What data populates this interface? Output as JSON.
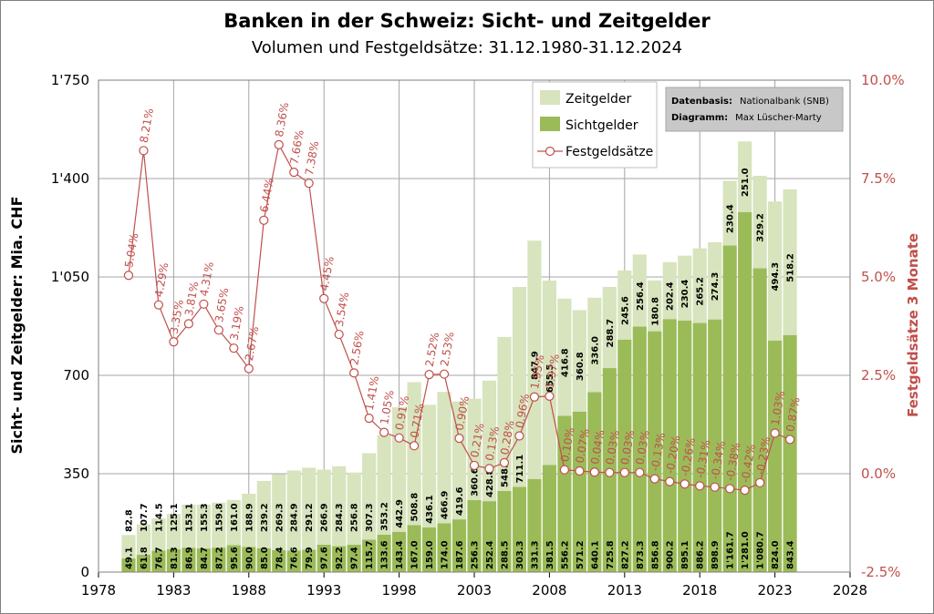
{
  "chart_data": {
    "type": "bar",
    "title": "Banken in der Schweiz: Sicht- und Zeitgelder",
    "subtitle": "Volumen und Festgeldsätze: 31.12.1980-31.12.2024",
    "ylabel": "Sicht- und Zeitgelder: Mia. CHF",
    "y2label": "Festgeldsätze 3 Monate",
    "ylim": [
      0,
      1750
    ],
    "y2lim": [
      -2.5,
      10.0
    ],
    "xlim": [
      1978,
      2028
    ],
    "yticks": [
      "0",
      "350",
      "700",
      "1'050",
      "1'400",
      "1'750"
    ],
    "yticks_values": [
      0,
      350,
      700,
      1050,
      1400,
      1750
    ],
    "y2ticks": [
      "-2.5%",
      "0.0%",
      "2.5%",
      "5.0%",
      "7.5%",
      "10.0%"
    ],
    "y2ticks_values": [
      -2.5,
      0,
      2.5,
      5,
      7.5,
      10
    ],
    "xticks": [
      "1978",
      "1983",
      "1988",
      "1993",
      "1998",
      "2003",
      "2008",
      "2013",
      "2018",
      "2023",
      "2028"
    ],
    "xticks_values": [
      1978,
      1983,
      1988,
      1993,
      1998,
      2003,
      2008,
      2013,
      2018,
      2023,
      2028
    ],
    "grid": true,
    "legend_position": "top-right",
    "colors": {
      "sichtgelder": "#9bbb59",
      "zeitgelder": "#d7e4bd",
      "festgeld": "#c0504d",
      "grid": "#a6a6a6"
    },
    "legend": [
      "Zeitgelder",
      "Sichtgelder",
      "Festgeldsätze"
    ],
    "source": {
      "label1": "Datenbasis:",
      "value1": "Nationalbank (SNB)",
      "label2": "Diagramm:",
      "value2": "Max Lüscher-Marty"
    },
    "years": [
      1980,
      1981,
      1982,
      1983,
      1984,
      1985,
      1986,
      1987,
      1988,
      1989,
      1990,
      1991,
      1992,
      1993,
      1994,
      1995,
      1996,
      1997,
      1998,
      1999,
      2000,
      2001,
      2002,
      2003,
      2004,
      2005,
      2006,
      2007,
      2008,
      2009,
      2010,
      2011,
      2012,
      2013,
      2014,
      2015,
      2016,
      2017,
      2018,
      2019,
      2020,
      2021,
      2022,
      2023,
      2024
    ],
    "sichtgelder": [
      49.1,
      61.8,
      76.7,
      81.3,
      86.9,
      84.7,
      87.2,
      95.6,
      90.0,
      85.0,
      78.4,
      76.6,
      79.9,
      97.6,
      92.2,
      97.4,
      115.7,
      133.6,
      143.4,
      167.0,
      159.0,
      174.0,
      187.6,
      256.3,
      252.4,
      288.5,
      303.3,
      331.3,
      381.5,
      556.2,
      571.2,
      640.1,
      725.8,
      827.2,
      873.3,
      856.8,
      900.2,
      895.1,
      886.2,
      898.9,
      1161.7,
      1281.0,
      1080.7,
      824.0,
      843.4
    ],
    "sichtgelder_labels": [
      "49.1",
      "61.8",
      "76.7",
      "81.3",
      "86.9",
      "84.7",
      "87.2",
      "95.6",
      "90.0",
      "85.0",
      "78.4",
      "76.6",
      "79.9",
      "97.6",
      "92.2",
      "97.4",
      "115.7",
      "133.6",
      "143.4",
      "167.0",
      "159.0",
      "174.0",
      "187.6",
      "256.3",
      "252.4",
      "288.5",
      "303.3",
      "331.3",
      "381.5",
      "556.2",
      "571.2",
      "640.1",
      "725.8",
      "827.2",
      "873.3",
      "856.8",
      "900.2",
      "895.1",
      "886.2",
      "898.9",
      "1'161.7",
      "1'281.0",
      "1'080.7",
      "824.0",
      "843.4"
    ],
    "zeitgelder": [
      82.8,
      107.7,
      114.5,
      125.1,
      153.1,
      155.3,
      159.8,
      161.0,
      188.9,
      239.2,
      269.3,
      284.9,
      291.2,
      266.9,
      284.3,
      256.8,
      307.3,
      353.2,
      442.9,
      508.8,
      436.1,
      466.9,
      419.6,
      360.6,
      428.8,
      548.0,
      711.1,
      847.9,
      655.5,
      416.8,
      360.8,
      336.0,
      288.7,
      245.6,
      256.4,
      180.8,
      202.4,
      230.4,
      265.2,
      274.3,
      230.4,
      251.0,
      329.2,
      494.3,
      518.2
    ],
    "zeitgelder_labels": [
      "82.8",
      "107.7",
      "114.5",
      "125.1",
      "153.1",
      "155.3",
      "159.8",
      "161.0",
      "188.9",
      "239.2",
      "269.3",
      "284.9",
      "291.2",
      "266.9",
      "284.3",
      "256.8",
      "307.3",
      "353.2",
      "442.9",
      "508.8",
      "436.1",
      "466.9",
      "419.6",
      "360.6",
      "428.8",
      "548.0",
      "711.1",
      "847.9",
      "655.5",
      "416.8",
      "360.8",
      "336.0",
      "288.7",
      "245.6",
      "256.4",
      "180.8",
      "202.4",
      "230.4",
      "265.2",
      "274.3",
      "230.4",
      "251.0",
      "329.2",
      "494.3",
      "518.2"
    ],
    "festgeldsaetze": [
      5.04,
      8.21,
      4.29,
      3.35,
      3.81,
      4.31,
      3.65,
      3.19,
      2.67,
      6.44,
      8.36,
      7.66,
      7.38,
      4.45,
      3.54,
      2.56,
      1.41,
      1.05,
      0.91,
      0.71,
      2.52,
      2.53,
      0.9,
      0.21,
      0.13,
      0.28,
      0.96,
      1.95,
      1.97,
      0.1,
      0.07,
      0.04,
      0.03,
      0.03,
      0.03,
      -0.13,
      -0.2,
      -0.26,
      -0.31,
      -0.34,
      -0.38,
      -0.42,
      -0.23,
      1.03,
      0.87
    ],
    "festgeldsaetze_labels": [
      "5.04%",
      "8.21%",
      "4.29%",
      "3.35%",
      "3.81%",
      "4.31%",
      "3.65%",
      "3.19%",
      "2.67%",
      "6.44%",
      "8.36%",
      "7.66%",
      "7.38%",
      "4.45%",
      "3.54%",
      "2.56%",
      "1.41%",
      "1.05%",
      "0.91%",
      "0.71%",
      "2.52%",
      "2.53%",
      "0.90%",
      "0.21%",
      "0.13%",
      "0.28%",
      "0.96%",
      "1.95%",
      "1.97%",
      "0.10%",
      "0.07%",
      "0.04%",
      "0.03%",
      "0.03%",
      "0.03%",
      "-0.13%",
      "-0.20%",
      "-0.26%",
      "-0.31%",
      "-0.34%",
      "-0.38%",
      "-0.42%",
      "-0.23%",
      "1.03%",
      "0.87%"
    ]
  }
}
